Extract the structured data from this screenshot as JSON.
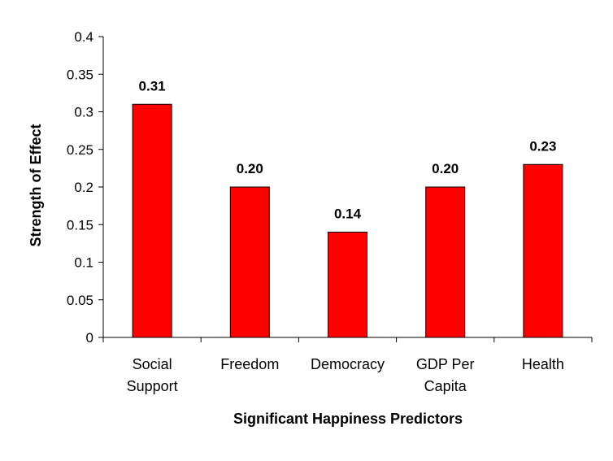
{
  "chart_data": {
    "type": "bar",
    "categories": [
      [
        "Social",
        "Support"
      ],
      [
        "Freedom"
      ],
      [
        "Democracy"
      ],
      [
        "GDP Per",
        "Capita"
      ],
      [
        "Health"
      ]
    ],
    "values": [
      0.31,
      0.2,
      0.14,
      0.2,
      0.23
    ],
    "data_labels": [
      "0.31",
      "0.20",
      "0.14",
      "0.20",
      "0.23"
    ],
    "title": "",
    "xlabel": "Significant Happiness Predictors",
    "ylabel": "Strength of Effect",
    "ylim": [
      0,
      0.4
    ],
    "y_ticks": [
      0,
      0.05,
      0.1,
      0.15,
      0.2,
      0.25,
      0.3,
      0.35,
      0.4
    ],
    "y_tick_labels": [
      "0",
      "0.05",
      "0.1",
      "0.15",
      "0.2",
      "0.25",
      "0.3",
      "0.35",
      "0.4"
    ],
    "grid": false,
    "legend": "none",
    "bar_color": "#ff0000",
    "bar_stroke": "#000000"
  }
}
